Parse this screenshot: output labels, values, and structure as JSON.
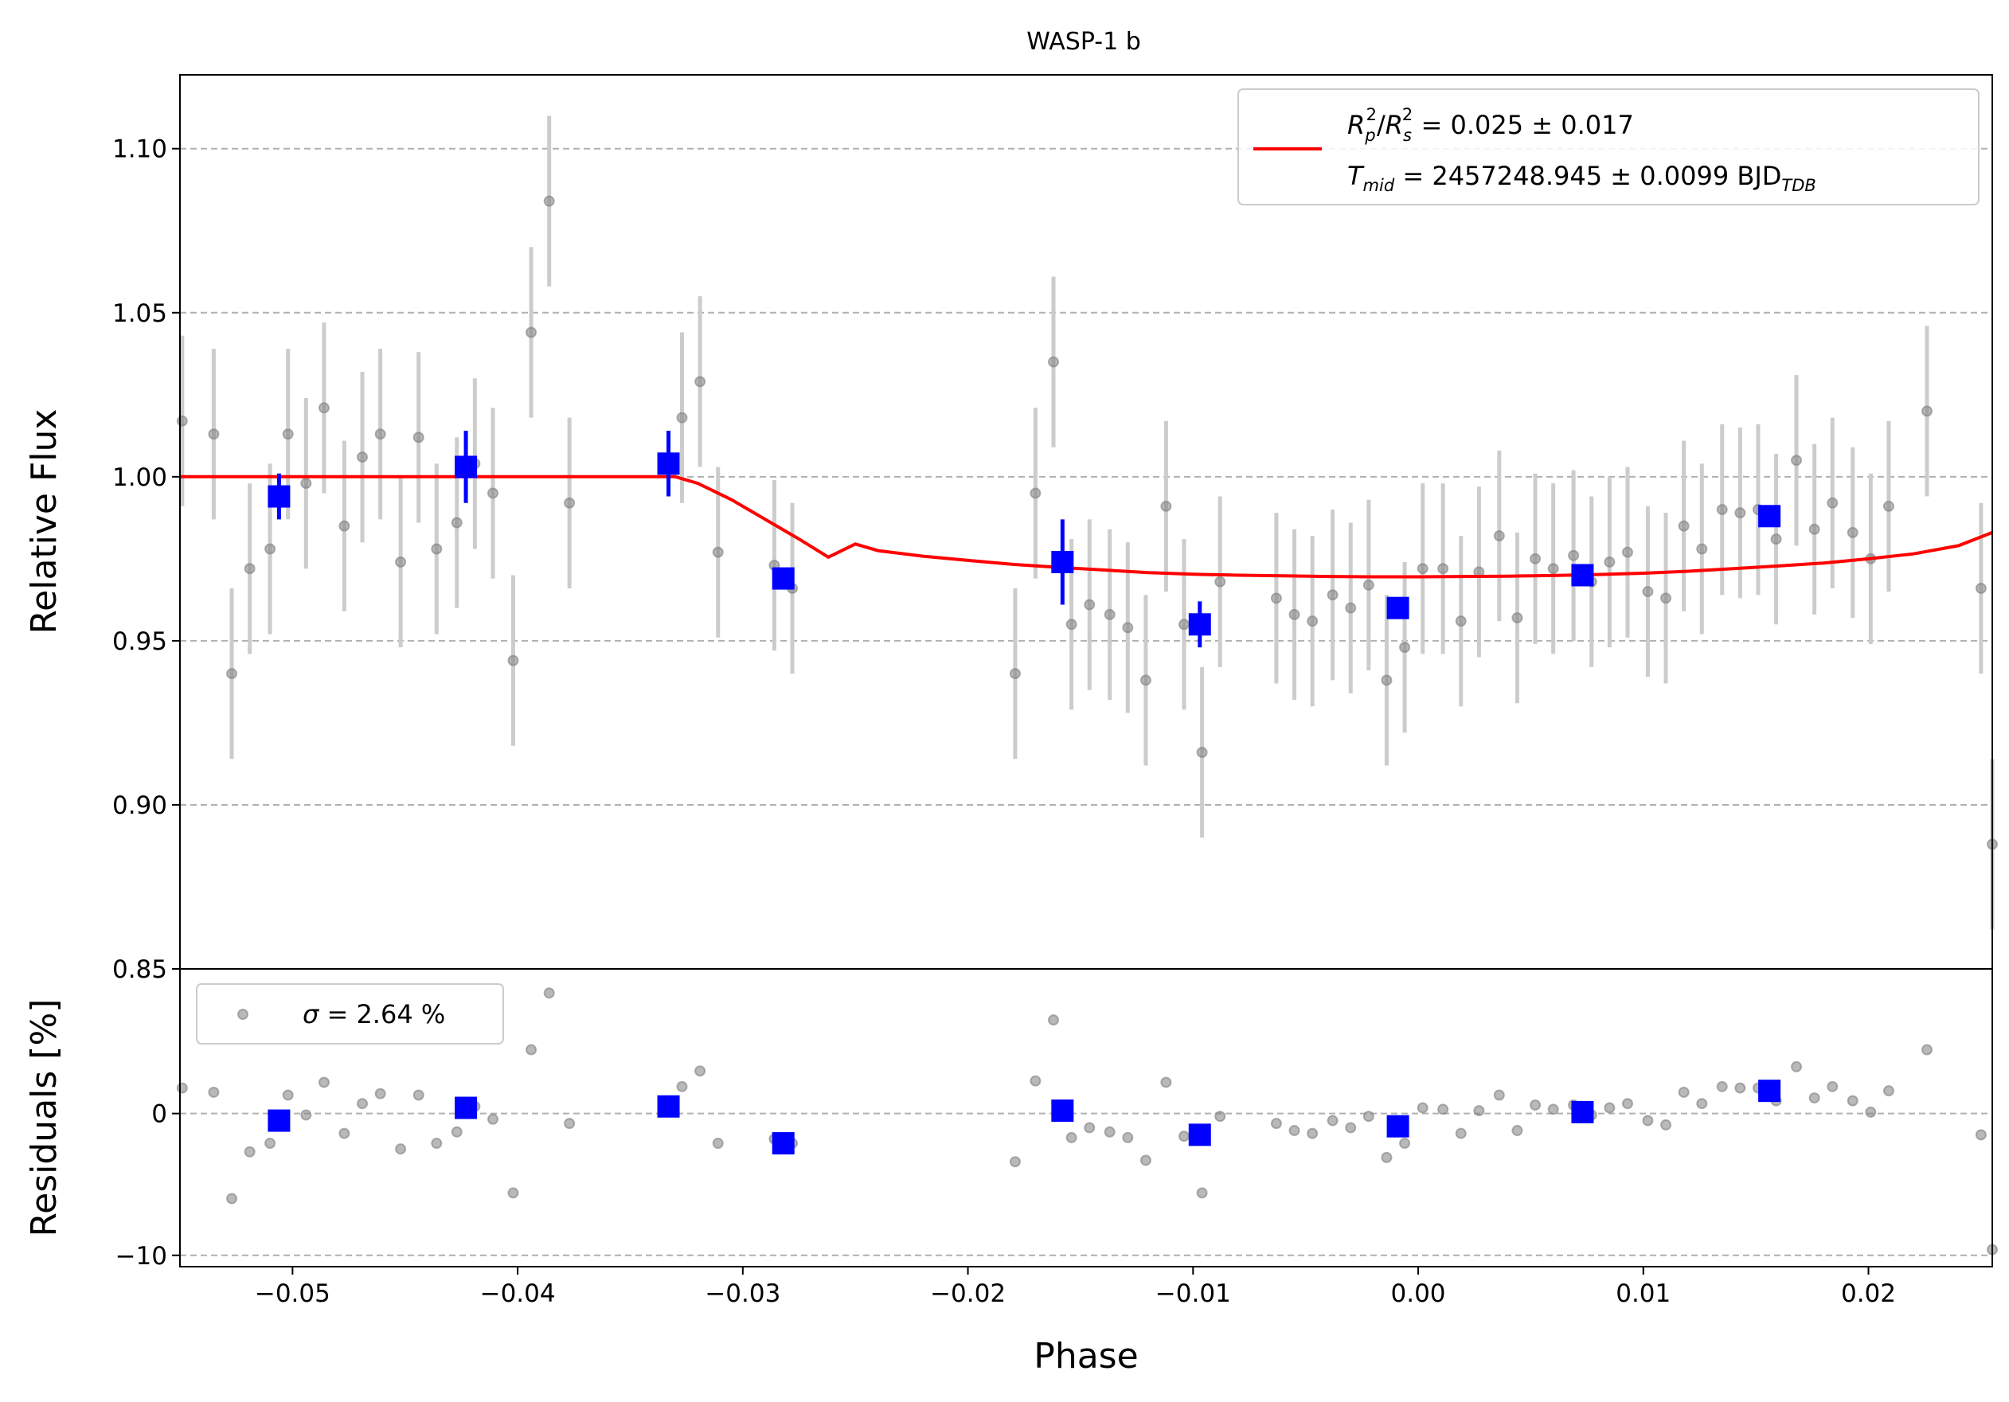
{
  "chart_data": {
    "type": "scatter",
    "title": "WASP-1 b",
    "xlabel": "Phase",
    "xlim": [
      -0.055,
      0.0255
    ],
    "x_ticks": [
      "−0.05",
      "−0.04",
      "−0.03",
      "−0.02",
      "−0.01",
      "0.00",
      "0.01",
      "0.02"
    ],
    "x_tick_values": [
      -0.05,
      -0.04,
      -0.03,
      -0.02,
      -0.01,
      0.0,
      0.01,
      0.02
    ],
    "grid": "horizontal dashed",
    "colors": {
      "raw": "#808080",
      "raw_err": "#cccccc",
      "binned": "#0000ff",
      "model": "#ff0000",
      "grid": "#b0b0b0"
    },
    "panels": [
      {
        "name": "flux",
        "ylabel": "Relative Flux",
        "ylim": [
          0.85,
          1.1225
        ],
        "y_ticks": [
          "0.85",
          "0.90",
          "0.95",
          "1.00",
          "1.05",
          "1.10"
        ],
        "y_tick_values": [
          0.85,
          0.9,
          0.95,
          1.0,
          1.05,
          1.1
        ],
        "legend": {
          "placement": "upper-right",
          "line1": {
            "R": "R",
            "p": "p",
            "s": "s",
            "sup": "2",
            "slash": "/",
            "text": " = 0.025 ± 0.017"
          },
          "line2": {
            "T": "T",
            "mid": "mid",
            "text": " = 2457248.945 ± 0.0099 BJD",
            "tdb": "TDB"
          }
        },
        "raw_points": [
          [
            -0.0549,
            1.017,
            0.026
          ],
          [
            -0.0535,
            1.013,
            0.026
          ],
          [
            -0.0527,
            0.94,
            0.026
          ],
          [
            -0.0519,
            0.972,
            0.026
          ],
          [
            -0.051,
            0.978,
            0.026
          ],
          [
            -0.0502,
            1.013,
            0.026
          ],
          [
            -0.0494,
            0.998,
            0.026
          ],
          [
            -0.0486,
            1.021,
            0.026
          ],
          [
            -0.0477,
            0.985,
            0.026
          ],
          [
            -0.0469,
            1.006,
            0.026
          ],
          [
            -0.0461,
            1.013,
            0.026
          ],
          [
            -0.0452,
            0.974,
            0.026
          ],
          [
            -0.0444,
            1.012,
            0.026
          ],
          [
            -0.0436,
            0.978,
            0.026
          ],
          [
            -0.0427,
            0.986,
            0.026
          ],
          [
            -0.0419,
            1.004,
            0.026
          ],
          [
            -0.0411,
            0.995,
            0.026
          ],
          [
            -0.0402,
            0.944,
            0.026
          ],
          [
            -0.0394,
            1.044,
            0.026
          ],
          [
            -0.0386,
            1.084,
            0.026
          ],
          [
            -0.0377,
            0.992,
            0.026
          ],
          [
            -0.0327,
            1.018,
            0.026
          ],
          [
            -0.0319,
            1.029,
            0.026
          ],
          [
            -0.0311,
            0.977,
            0.026
          ],
          [
            -0.0286,
            0.973,
            0.026
          ],
          [
            -0.0278,
            0.966,
            0.026
          ],
          [
            -0.0179,
            0.94,
            0.026
          ],
          [
            -0.017,
            0.995,
            0.026
          ],
          [
            -0.0162,
            1.035,
            0.026
          ],
          [
            -0.0154,
            0.955,
            0.026
          ],
          [
            -0.0146,
            0.961,
            0.026
          ],
          [
            -0.0137,
            0.958,
            0.026
          ],
          [
            -0.0129,
            0.954,
            0.026
          ],
          [
            -0.0121,
            0.938,
            0.026
          ],
          [
            -0.0112,
            0.991,
            0.026
          ],
          [
            -0.0104,
            0.955,
            0.026
          ],
          [
            -0.0096,
            0.916,
            0.026
          ],
          [
            -0.0088,
            0.968,
            0.026
          ],
          [
            -0.0063,
            0.963,
            0.026
          ],
          [
            -0.0055,
            0.958,
            0.026
          ],
          [
            -0.0047,
            0.956,
            0.026
          ],
          [
            -0.0038,
            0.964,
            0.026
          ],
          [
            -0.003,
            0.96,
            0.026
          ],
          [
            -0.0022,
            0.967,
            0.026
          ],
          [
            -0.0014,
            0.938,
            0.026
          ],
          [
            -0.0006,
            0.948,
            0.026
          ],
          [
            0.0002,
            0.972,
            0.026
          ],
          [
            0.0011,
            0.972,
            0.026
          ],
          [
            0.0019,
            0.956,
            0.026
          ],
          [
            0.0027,
            0.971,
            0.026
          ],
          [
            0.0036,
            0.982,
            0.026
          ],
          [
            0.0044,
            0.957,
            0.026
          ],
          [
            0.0052,
            0.975,
            0.026
          ],
          [
            0.006,
            0.972,
            0.026
          ],
          [
            0.0069,
            0.976,
            0.026
          ],
          [
            0.0077,
            0.968,
            0.026
          ],
          [
            0.0085,
            0.974,
            0.026
          ],
          [
            0.0093,
            0.977,
            0.026
          ],
          [
            0.0102,
            0.965,
            0.026
          ],
          [
            0.011,
            0.963,
            0.026
          ],
          [
            0.0118,
            0.985,
            0.026
          ],
          [
            0.0126,
            0.978,
            0.026
          ],
          [
            0.0135,
            0.99,
            0.026
          ],
          [
            0.0143,
            0.989,
            0.026
          ],
          [
            0.0151,
            0.99,
            0.026
          ],
          [
            0.0159,
            0.981,
            0.026
          ],
          [
            0.0168,
            1.005,
            0.026
          ],
          [
            0.0176,
            0.984,
            0.026
          ],
          [
            0.0184,
            0.992,
            0.026
          ],
          [
            0.0193,
            0.983,
            0.026
          ],
          [
            0.0201,
            0.975,
            0.026
          ],
          [
            0.0209,
            0.991,
            0.026
          ],
          [
            0.0226,
            1.02,
            0.026
          ],
          [
            0.025,
            0.966,
            0.026
          ],
          [
            0.0255,
            0.888,
            0.026
          ]
        ],
        "binned_points": [
          [
            -0.0506,
            0.994,
            0.007
          ],
          [
            -0.0423,
            1.003,
            0.011
          ],
          [
            -0.0333,
            1.004,
            0.01
          ],
          [
            -0.0282,
            0.969,
            0.0
          ],
          [
            -0.0158,
            0.974,
            0.013
          ],
          [
            -0.0097,
            0.955,
            0.007
          ],
          [
            -0.0009,
            0.96,
            0.0
          ],
          [
            0.0073,
            0.97,
            0.0
          ],
          [
            0.0156,
            0.988,
            0.0
          ]
        ],
        "model_line": [
          [
            -0.055,
            1.0
          ],
          [
            -0.033,
            1.0
          ],
          [
            -0.032,
            0.998
          ],
          [
            -0.0305,
            0.993
          ],
          [
            -0.029,
            0.987
          ],
          [
            -0.0275,
            0.981
          ],
          [
            -0.0262,
            0.9755
          ],
          [
            -0.025,
            0.9795
          ],
          [
            -0.024,
            0.9775
          ],
          [
            -0.022,
            0.9758
          ],
          [
            -0.02,
            0.9745
          ],
          [
            -0.018,
            0.9733
          ],
          [
            -0.016,
            0.9724
          ],
          [
            -0.014,
            0.9716
          ],
          [
            -0.012,
            0.9708
          ],
          [
            -0.01,
            0.9703
          ],
          [
            -0.008,
            0.97
          ],
          [
            -0.006,
            0.9698
          ],
          [
            -0.004,
            0.9696
          ],
          [
            -0.002,
            0.9695
          ],
          [
            0.0,
            0.9695
          ],
          [
            0.002,
            0.9696
          ],
          [
            0.004,
            0.9697
          ],
          [
            0.006,
            0.9699
          ],
          [
            0.008,
            0.9702
          ],
          [
            0.01,
            0.9706
          ],
          [
            0.012,
            0.9712
          ],
          [
            0.014,
            0.972
          ],
          [
            0.016,
            0.9728
          ],
          [
            0.018,
            0.9737
          ],
          [
            0.02,
            0.975
          ],
          [
            0.022,
            0.9765
          ],
          [
            0.024,
            0.979
          ],
          [
            0.0255,
            0.983
          ]
        ]
      },
      {
        "name": "residuals",
        "ylabel": "Residuals [%]",
        "ylim": [
          -10.8,
          10.2
        ],
        "y_ticks": [
          "0",
          "−10"
        ],
        "y_tick_values": [
          0,
          -10
        ],
        "legend": {
          "placement": "upper-left",
          "sigma": "σ",
          "text": " = 2.64 %"
        },
        "raw_points": [
          [
            -0.0549,
            1.8
          ],
          [
            -0.0535,
            1.5
          ],
          [
            -0.0527,
            -6.0
          ],
          [
            -0.0519,
            -2.7
          ],
          [
            -0.051,
            -2.1
          ],
          [
            -0.0502,
            1.3
          ],
          [
            -0.0494,
            -0.1
          ],
          [
            -0.0486,
            2.2
          ],
          [
            -0.0477,
            -1.4
          ],
          [
            -0.0469,
            0.7
          ],
          [
            -0.0461,
            1.4
          ],
          [
            -0.0452,
            -2.5
          ],
          [
            -0.0444,
            1.3
          ],
          [
            -0.0436,
            -2.1
          ],
          [
            -0.0427,
            -1.3
          ],
          [
            -0.0419,
            0.5
          ],
          [
            -0.0411,
            -0.4
          ],
          [
            -0.0402,
            -5.6
          ],
          [
            -0.0394,
            4.5
          ],
          [
            -0.0386,
            8.5
          ],
          [
            -0.0377,
            -0.7
          ],
          [
            -0.0327,
            1.9
          ],
          [
            -0.0319,
            3.0
          ],
          [
            -0.0311,
            -2.1
          ],
          [
            -0.0286,
            -1.8
          ],
          [
            -0.0278,
            -2.1
          ],
          [
            -0.0179,
            -3.4
          ],
          [
            -0.017,
            2.3
          ],
          [
            -0.0162,
            6.6
          ],
          [
            -0.0154,
            -1.7
          ],
          [
            -0.0146,
            -1.0
          ],
          [
            -0.0137,
            -1.3
          ],
          [
            -0.0129,
            -1.7
          ],
          [
            -0.0121,
            -3.3
          ],
          [
            -0.0112,
            2.2
          ],
          [
            -0.0104,
            -1.6
          ],
          [
            -0.0096,
            -5.6
          ],
          [
            -0.0088,
            -0.2
          ],
          [
            -0.0063,
            -0.7
          ],
          [
            -0.0055,
            -1.2
          ],
          [
            -0.0047,
            -1.4
          ],
          [
            -0.0038,
            -0.5
          ],
          [
            -0.003,
            -1.0
          ],
          [
            -0.0022,
            -0.2
          ],
          [
            -0.0014,
            -3.1
          ],
          [
            -0.0006,
            -2.1
          ],
          [
            0.0002,
            0.4
          ],
          [
            0.0011,
            0.3
          ],
          [
            0.0019,
            -1.4
          ],
          [
            0.0027,
            0.2
          ],
          [
            0.0036,
            1.3
          ],
          [
            0.0044,
            -1.2
          ],
          [
            0.0052,
            0.6
          ],
          [
            0.006,
            0.3
          ],
          [
            0.0069,
            0.6
          ],
          [
            0.0077,
            -0.1
          ],
          [
            0.0085,
            0.4
          ],
          [
            0.0093,
            0.7
          ],
          [
            0.0102,
            -0.5
          ],
          [
            0.011,
            -0.8
          ],
          [
            0.0118,
            1.5
          ],
          [
            0.0126,
            0.7
          ],
          [
            0.0135,
            1.9
          ],
          [
            0.0143,
            1.8
          ],
          [
            0.0151,
            1.8
          ],
          [
            0.0159,
            0.9
          ],
          [
            0.0168,
            3.3
          ],
          [
            0.0176,
            1.1
          ],
          [
            0.0184,
            1.9
          ],
          [
            0.0193,
            0.9
          ],
          [
            0.0201,
            0.1
          ],
          [
            0.0209,
            1.6
          ],
          [
            0.0226,
            4.5
          ],
          [
            0.025,
            -1.5
          ],
          [
            0.0255,
            -9.6
          ]
        ],
        "binned_points": [
          [
            -0.0506,
            -0.5
          ],
          [
            -0.0423,
            0.4
          ],
          [
            -0.0333,
            0.5
          ],
          [
            -0.0282,
            -2.1
          ],
          [
            -0.0158,
            0.2
          ],
          [
            -0.0097,
            -1.5
          ],
          [
            -0.0009,
            -0.9
          ],
          [
            0.0073,
            0.1
          ],
          [
            0.0156,
            1.6
          ]
        ]
      }
    ]
  }
}
